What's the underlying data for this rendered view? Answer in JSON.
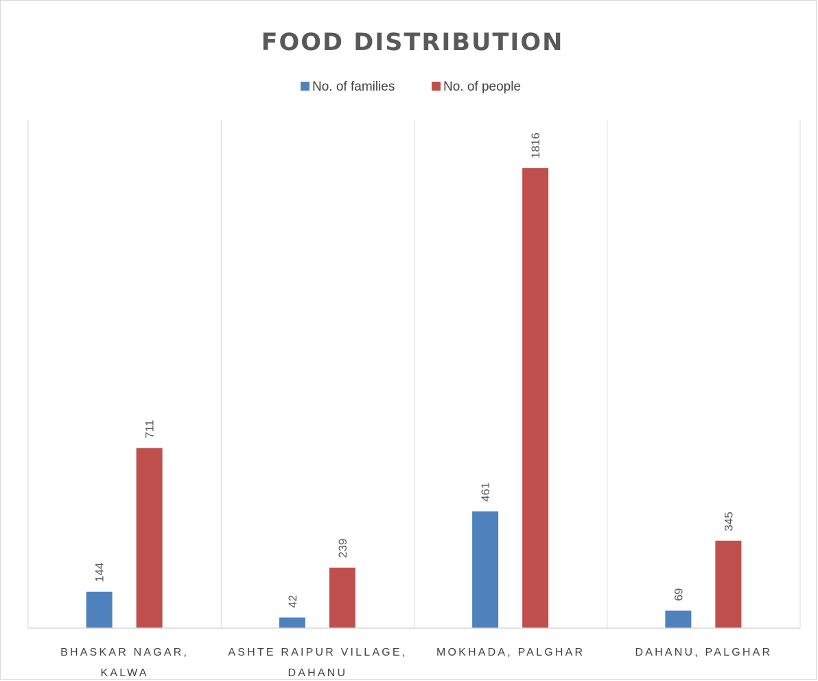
{
  "chart_data": {
    "type": "bar",
    "title": "FOOD DISTRIBUTION",
    "categories": [
      [
        "BHASKAR NAGAR,",
        "KALWA"
      ],
      [
        "ASHTE RAIPUR VILLAGE,",
        "DAHANU"
      ],
      [
        "MOKHADA, PALGHAR"
      ],
      [
        "DAHANU, PALGHAR"
      ]
    ],
    "series": [
      {
        "name": "No. of families",
        "color": "#4f81bd",
        "values": [
          144,
          42,
          461,
          69
        ]
      },
      {
        "name": "No. of people",
        "color": "#c0504d",
        "values": [
          711,
          239,
          1816,
          345
        ]
      }
    ],
    "ylim": [
      0,
      1816
    ],
    "legend": "top",
    "grid": "vertical category separators",
    "data_labels": "rotated above bars"
  }
}
